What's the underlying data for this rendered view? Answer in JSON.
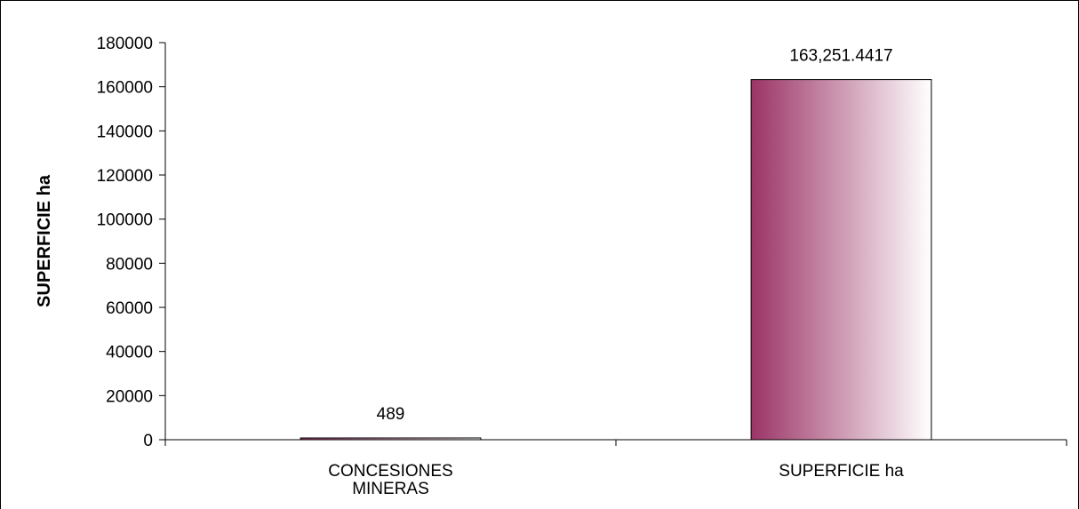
{
  "chart_data": {
    "type": "bar",
    "title": "",
    "xlabel": "",
    "ylabel": "SUPERFICIE ha",
    "ylim": [
      0,
      180000
    ],
    "yticks": [
      0,
      20000,
      40000,
      60000,
      80000,
      100000,
      120000,
      140000,
      160000,
      180000
    ],
    "categories": [
      {
        "label_lines": [
          "CONCESIONES",
          "MINERAS"
        ]
      },
      {
        "label_lines": [
          "SUPERFICIE ha"
        ]
      }
    ],
    "values": [
      489,
      163251.4417
    ],
    "data_labels": [
      "489",
      "163,251.4417"
    ],
    "grid": false,
    "legend": "none",
    "colors": {
      "bar_gradient_start": "#9b3466",
      "bar_gradient_end": "#ffffff",
      "bar_outline": "#000000",
      "axis": "#000000"
    }
  }
}
